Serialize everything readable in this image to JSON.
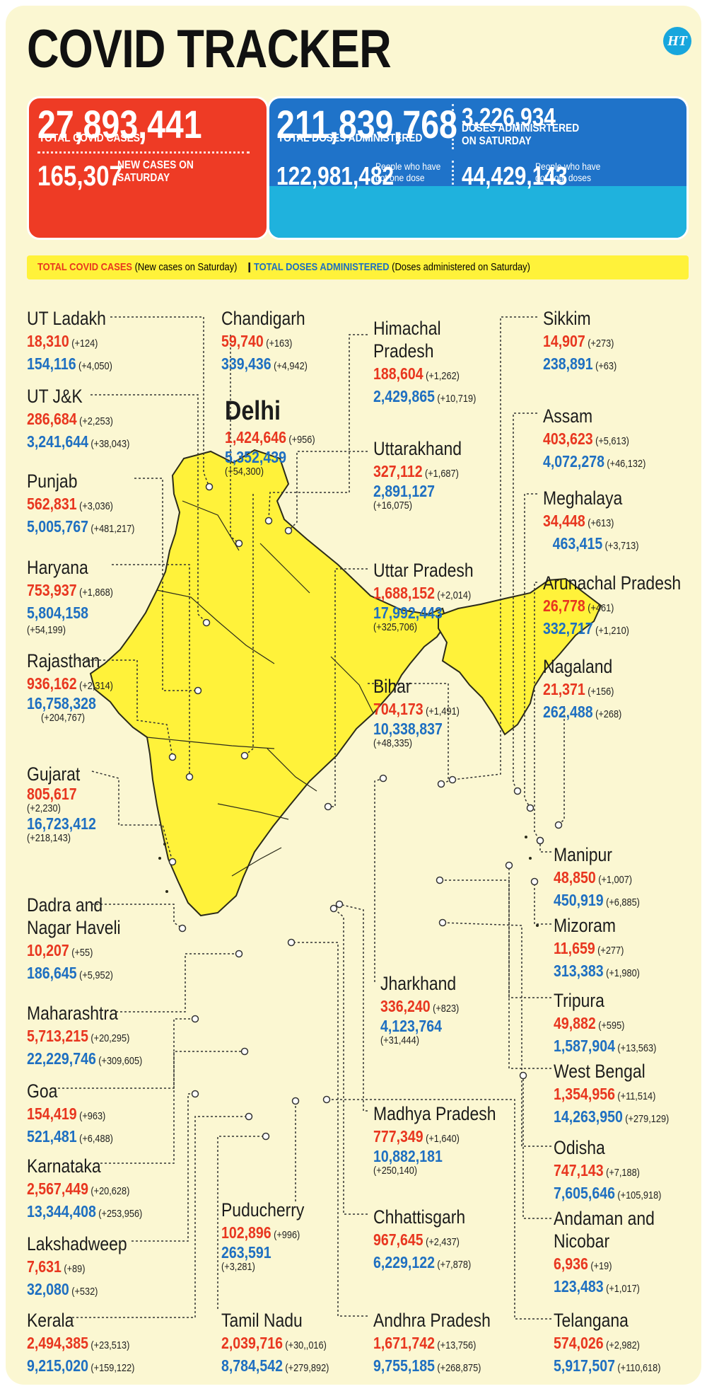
{
  "title": "COVID TRACKER",
  "logo": "HT",
  "summary": {
    "total_cases": "27,893,441",
    "total_cases_label": "TOTAL COVID CASES",
    "new_cases": "165,307",
    "new_cases_label_1": "NEW CASES ON",
    "new_cases_label_2": "SATURDAY",
    "total_doses": "211,839,768",
    "total_doses_label": "TOTAL DOSES ADMINISTERED",
    "saturday_doses": "3,226,934",
    "saturday_doses_label_1": "DOSES ADMINISRTERED",
    "saturday_doses_label_2": "ON SATURDAY",
    "one_dose": "122,981,482",
    "one_dose_label_1": "People who have",
    "one_dose_label_2": "got one dose",
    "both_doses": "44,429,143",
    "both_doses_label_1": "People who have",
    "both_doses_label_2": "got both doses"
  },
  "legend": {
    "cases": "TOTAL COVID CASES",
    "cases_note": "(New cases on Saturday)",
    "doses": "TOTAL DOSES ADMINISTERED",
    "doses_note": "(Doses administered on Saturday)"
  },
  "colors": {
    "cases": "#e8361f",
    "doses": "#1e6fc1",
    "map_fill": "#fff23a",
    "red_box": "#ee3b25",
    "blue_box": "#1f73c9",
    "cyan_box": "#1fb2dd"
  },
  "states": [
    {
      "key": "ladakh",
      "name": "UT Ladakh",
      "cases": "18,310",
      "new_cases": "(+124)",
      "doses": "154,116",
      "new_doses": "(+4,050)"
    },
    {
      "key": "jk",
      "name": "UT J&K",
      "cases": "286,684",
      "new_cases": "(+2,253)",
      "doses": "3,241,644",
      "new_doses": "(+38,043)"
    },
    {
      "key": "punjab",
      "name": "Punjab",
      "cases": "562,831",
      "new_cases": "(+3,036)",
      "doses": "5,005,767",
      "new_doses": "(+481,217)"
    },
    {
      "key": "haryana",
      "name": "Haryana",
      "cases": "753,937",
      "new_cases": "(+1,868)",
      "doses": "5,804,158",
      "new_doses": "(+54,199)"
    },
    {
      "key": "rajasthan",
      "name": "Rajasthan",
      "cases": "936,162",
      "new_cases": "(+2,314)",
      "doses": "16,758,328",
      "new_doses": "(+204,767)"
    },
    {
      "key": "gujarat",
      "name": "Gujarat",
      "cases": "805,617",
      "new_cases": "(+2,230)",
      "doses": "16,723,412",
      "new_doses": "(+218,143)"
    },
    {
      "key": "dnh",
      "name_1": "Dadra and",
      "name_2": "Nagar Haveli",
      "cases": "10,207",
      "new_cases": "(+55)",
      "doses": "186,645",
      "new_doses": "(+5,952)"
    },
    {
      "key": "maharashtra",
      "name": "Maharashtra",
      "cases": "5,713,215",
      "new_cases": "(+20,295)",
      "doses": "22,229,746",
      "new_doses": "(+309,605)"
    },
    {
      "key": "goa",
      "name": "Goa",
      "cases": "154,419",
      "new_cases": "(+963)",
      "doses": "521,481",
      "new_doses": "(+6,488)"
    },
    {
      "key": "karnataka",
      "name": "Karnataka",
      "cases": "2,567,449",
      "new_cases": "(+20,628)",
      "doses": "13,344,408",
      "new_doses": "(+253,956)"
    },
    {
      "key": "lakshadweep",
      "name": "Lakshadweep",
      "cases": "7,631",
      "new_cases": "(+89)",
      "doses": "32,080",
      "new_doses": "(+532)"
    },
    {
      "key": "kerala",
      "name": "Kerala",
      "cases": "2,494,385",
      "new_cases": "(+23,513)",
      "doses": "9,215,020",
      "new_doses": "(+159,122)"
    },
    {
      "key": "chandigarh",
      "name": "Chandigarh",
      "cases": "59,740",
      "new_cases": "(+163)",
      "doses": "339,436",
      "new_doses": "(+4,942)"
    },
    {
      "key": "delhi",
      "name": "Delhi",
      "cases": "1,424,646",
      "new_cases": "(+956)",
      "doses": "5,352,439",
      "new_doses": "(+54,300)"
    },
    {
      "key": "puducherry",
      "name": "Puducherry",
      "cases": "102,896",
      "new_cases": "(+996)",
      "doses": "263,591",
      "new_doses": "(+3,281)"
    },
    {
      "key": "tamilnadu",
      "name": "Tamil Nadu",
      "cases": "2,039,716",
      "new_cases": "(+30,,016)",
      "doses": "8,784,542",
      "new_doses": "(+279,892)"
    },
    {
      "key": "himachal",
      "name_1": "Himachal",
      "name_2": "Pradesh",
      "cases": "188,604",
      "new_cases": "(+1,262)",
      "doses": "2,429,865",
      "new_doses": "(+10,719)"
    },
    {
      "key": "uttarakhand",
      "name": "Uttarakhand",
      "cases": "327,112",
      "new_cases": "(+1,687)",
      "doses": "2,891,127",
      "new_doses": "(+16,075)"
    },
    {
      "key": "up",
      "name": "Uttar Pradesh",
      "cases": "1,688,152",
      "new_cases": "(+2,014)",
      "doses": "17,992,443",
      "new_doses": "(+325,706)"
    },
    {
      "key": "bihar",
      "name": "Bihar",
      "cases": "704,173",
      "new_cases": "(+1,491)",
      "doses": "10,338,837",
      "new_doses": "(+48,335)"
    },
    {
      "key": "jharkhand",
      "name": "Jharkhand",
      "cases": "336,240",
      "new_cases": "(+823)",
      "doses": "4,123,764",
      "new_doses": "(+31,444)"
    },
    {
      "key": "mp",
      "name": "Madhya Pradesh",
      "cases": "777,349",
      "new_cases": "(+1,640)",
      "doses": "10,882,181",
      "new_doses": "(+250,140)"
    },
    {
      "key": "chhattisgarh",
      "name": "Chhattisgarh",
      "cases": "967,645",
      "new_cases": "(+2,437)",
      "doses": "6,229,122",
      "new_doses": "(+7,878)"
    },
    {
      "key": "ap",
      "name": "Andhra Pradesh",
      "cases": "1,671,742",
      "new_cases": "(+13,756)",
      "doses": "9,755,185",
      "new_doses": "(+268,875)"
    },
    {
      "key": "sikkim",
      "name": "Sikkim",
      "cases": "14,907",
      "new_cases": "(+273)",
      "doses": "238,891",
      "new_doses": "(+63)"
    },
    {
      "key": "assam",
      "name": "Assam",
      "cases": "403,623",
      "new_cases": "(+5,613)",
      "doses": "4,072,278",
      "new_doses": "(+46,132)"
    },
    {
      "key": "meghalaya",
      "name": "Meghalaya",
      "cases": "34,448",
      "new_cases": "(+613)",
      "doses": "463,415",
      "new_doses": "(+3,713)"
    },
    {
      "key": "arunachal",
      "name": "Arunachal Pradesh",
      "cases": "26,778",
      "new_cases": "(+461)",
      "doses": "332,717",
      "new_doses": "(+1,210)"
    },
    {
      "key": "nagaland",
      "name": "Nagaland",
      "cases": "21,371",
      "new_cases": "(+156)",
      "doses": "262,488",
      "new_doses": "(+268)"
    },
    {
      "key": "manipur",
      "name": "Manipur",
      "cases": "48,850",
      "new_cases": "(+1,007)",
      "doses": "450,919",
      "new_doses": "(+6,885)"
    },
    {
      "key": "mizoram",
      "name": "Mizoram",
      "cases": "11,659",
      "new_cases": "(+277)",
      "doses": "313,383",
      "new_doses": "(+1,980)"
    },
    {
      "key": "tripura",
      "name": "Tripura",
      "cases": "49,882",
      "new_cases": "(+595)",
      "doses": "1,587,904",
      "new_doses": "(+13,563)"
    },
    {
      "key": "westbengal",
      "name": "West Bengal",
      "cases": "1,354,956",
      "new_cases": "(+11,514)",
      "doses": "14,263,950",
      "new_doses": "(+279,129)"
    },
    {
      "key": "odisha",
      "name": "Odisha",
      "cases": "747,143",
      "new_cases": "(+7,188)",
      "doses": "7,605,646",
      "new_doses": "(+105,918)"
    },
    {
      "key": "andaman",
      "name_1": "Andaman and",
      "name_2": "Nicobar",
      "cases": "6,936",
      "new_cases": "(+19)",
      "doses": "123,483",
      "new_doses": "(+1,017)"
    },
    {
      "key": "telangana",
      "name": "Telangana",
      "cases": "574,026",
      "new_cases": "(+2,982)",
      "doses": "5,917,507",
      "new_doses": "(+110,618)"
    }
  ]
}
